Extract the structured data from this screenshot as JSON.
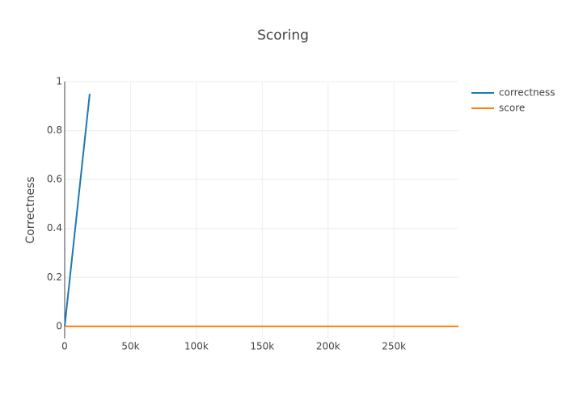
{
  "chart_data": {
    "type": "line",
    "title": "Scoring",
    "y_label": "Correctness",
    "series": [
      {
        "name": "correctness",
        "color": "#1f77b4",
        "x": [
          0,
          19000
        ],
        "values": [
          0,
          0.95
        ]
      },
      {
        "name": "score",
        "color": "#ff7f0e",
        "x": [
          0,
          299000
        ],
        "values": [
          0,
          0
        ]
      }
    ],
    "xlim": [
      0,
      299000
    ],
    "xticks": [
      0,
      {
        "value": 50000,
        "label": "50k"
      },
      {
        "value": 100000,
        "label": "100k"
      },
      {
        "value": 150000,
        "label": "150k"
      },
      {
        "value": 200000,
        "label": "200k"
      },
      {
        "value": 250000,
        "label": "250k"
      }
    ],
    "ylim": [
      -0.05,
      1
    ],
    "yticks": [
      0,
      0.2,
      0.4,
      0.6,
      0.8,
      1
    ],
    "grid": true,
    "legend": "top-right"
  }
}
